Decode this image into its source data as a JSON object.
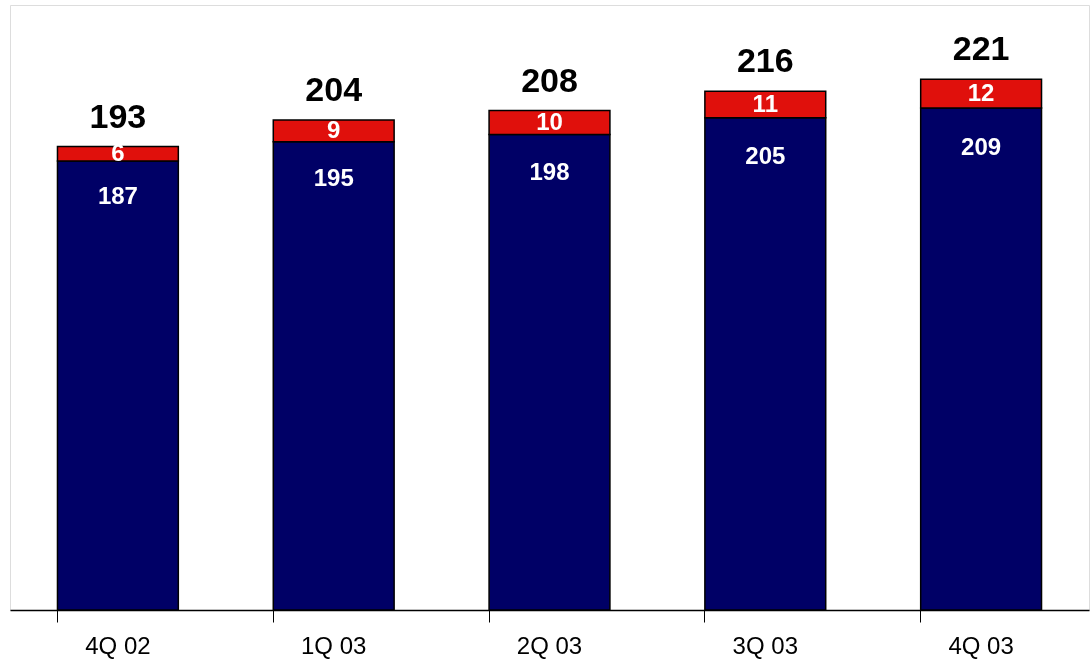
{
  "chart_data": {
    "type": "bar",
    "stacked": true,
    "categories": [
      "4Q 02",
      "1Q 03",
      "2Q 03",
      "3Q 03",
      "4Q 03"
    ],
    "series": [
      {
        "color": "#000066",
        "values": [
          187,
          195,
          198,
          205,
          209
        ]
      },
      {
        "color": "#e0100c",
        "values": [
          6,
          9,
          10,
          11,
          12
        ]
      }
    ],
    "data_labels": true,
    "totals": [
      "193",
      "204",
      "208",
      "216",
      "221"
    ]
  }
}
